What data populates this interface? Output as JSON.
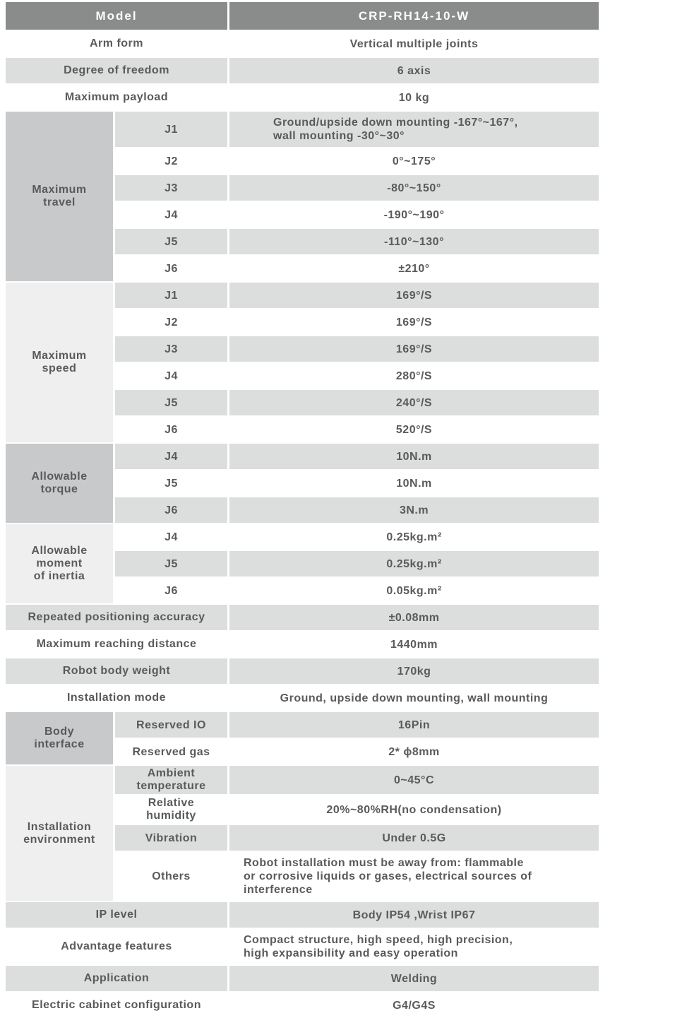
{
  "colors": {
    "header_bg": "#8a8b8b",
    "header_text": "#fdfdfd",
    "dark_group_bg": "#c8c9ca",
    "light_group_bg": "#efefef",
    "gray_row_bg": "#dcdddd",
    "body_text": "#595a5c"
  },
  "table": {
    "header": {
      "label": "Model",
      "value": "CRP-RH14-10-W"
    },
    "top_rows": [
      {
        "label": "Arm form",
        "value": "Vertical multiple joints"
      },
      {
        "label": "Degree of freedom",
        "value": "6 axis"
      },
      {
        "label": "Maximum payload",
        "value": "10 kg"
      }
    ],
    "groups": [
      {
        "label": "Maximum\ntravel",
        "rows": [
          {
            "sub": "J1",
            "value": "Ground/upside down mounting -167°~167°,\nwall mounting -30°~30°"
          },
          {
            "sub": "J2",
            "value": "0°~175°"
          },
          {
            "sub": "J3",
            "value": "-80°~150°"
          },
          {
            "sub": "J4",
            "value": "-190°~190°"
          },
          {
            "sub": "J5",
            "value": "-110°~130°"
          },
          {
            "sub": "J6",
            "value": "±210°"
          }
        ]
      },
      {
        "label": "Maximum\nspeed",
        "rows": [
          {
            "sub": "J1",
            "value": "169°/S"
          },
          {
            "sub": "J2",
            "value": "169°/S"
          },
          {
            "sub": "J3",
            "value": "169°/S"
          },
          {
            "sub": "J4",
            "value": "280°/S"
          },
          {
            "sub": "J5",
            "value": "240°/S"
          },
          {
            "sub": "J6",
            "value": "520°/S"
          }
        ]
      },
      {
        "label": "Allowable\ntorque",
        "rows": [
          {
            "sub": "J4",
            "value": "10N.m"
          },
          {
            "sub": "J5",
            "value": "10N.m"
          },
          {
            "sub": "J6",
            "value": "3N.m"
          }
        ]
      },
      {
        "label": "Allowable\nmoment\nof inertia",
        "rows": [
          {
            "sub": "J4",
            "value": "0.25kg.m²"
          },
          {
            "sub": "J5",
            "value": "0.25kg.m²"
          },
          {
            "sub": "J6",
            "value": "0.05kg.m²"
          }
        ]
      },
      {
        "label": "Body\ninterface",
        "rows": [
          {
            "sub": "Reserved IO",
            "value": "16Pin"
          },
          {
            "sub": "Reserved gas",
            "value": "2* ϕ8mm"
          }
        ]
      },
      {
        "label": "Installation\nenvironment",
        "rows": [
          {
            "sub": "Ambient\ntemperature",
            "value": "0~45°C"
          },
          {
            "sub": "Relative\nhumidity",
            "value": "20%~80%RH(no condensation)"
          },
          {
            "sub": "Vibration",
            "value": "Under 0.5G"
          },
          {
            "sub": "Others",
            "value": "Robot installation must be away from: flammable\nor corrosive liquids or gases, electrical sources of\ninterference"
          }
        ]
      }
    ],
    "mid_rows": [
      {
        "label": "Repeated positioning accuracy",
        "value": "±0.08mm"
      },
      {
        "label": "Maximum reaching distance",
        "value": "1440mm"
      },
      {
        "label": "Robot body weight",
        "value": "170kg"
      },
      {
        "label": "Installation mode",
        "value": "Ground, upside down mounting, wall mounting"
      }
    ],
    "bottom_rows": [
      {
        "label": "IP level",
        "value": "Body IP54 ,Wrist IP67"
      },
      {
        "label": "Advantage features",
        "value": "Compact structure, high speed, high precision,\nhigh expansibility and easy operation"
      },
      {
        "label": "Application",
        "value": "Welding"
      },
      {
        "label": "Electric cabinet configuration",
        "value": "G4/G4S"
      }
    ]
  }
}
